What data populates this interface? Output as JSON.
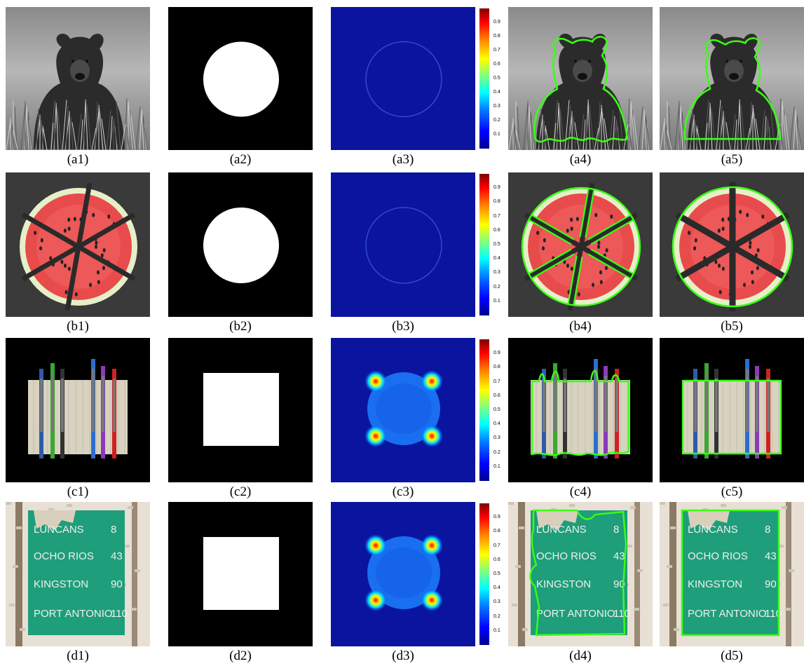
{
  "figure": {
    "rows": [
      {
        "id": "a",
        "captions": [
          "(a1)",
          "(a2)",
          "(a3)",
          "(a4)",
          "(a5)"
        ],
        "image": "bear",
        "init_mask": "circle"
      },
      {
        "id": "b",
        "captions": [
          "(b1)",
          "(b2)",
          "(b3)",
          "(b4)",
          "(b5)"
        ],
        "image": "watermelon",
        "init_mask": "circle"
      },
      {
        "id": "c",
        "captions": [
          "(c1)",
          "(c2)",
          "(c3)",
          "(c4)",
          "(c5)"
        ],
        "image": "pencils",
        "init_mask": "square"
      },
      {
        "id": "d",
        "captions": [
          "(d1)",
          "(d2)",
          "(d3)",
          "(d4)",
          "(d5)"
        ],
        "image": "road-sign",
        "init_mask": "square"
      }
    ],
    "colorbar_ticks": [
      "0.9",
      "0.8",
      "0.7",
      "0.6",
      "0.5",
      "0.4",
      "0.3",
      "0.2",
      "0.1"
    ],
    "sign_text": [
      "LUNCANS",
      "8",
      "OCHO RIOS",
      "43",
      "KINGSTON",
      "90",
      "PORT ANTONIO",
      "110"
    ],
    "colors": {
      "contour": "#39ff14",
      "map_background": "#0a149e"
    }
  }
}
